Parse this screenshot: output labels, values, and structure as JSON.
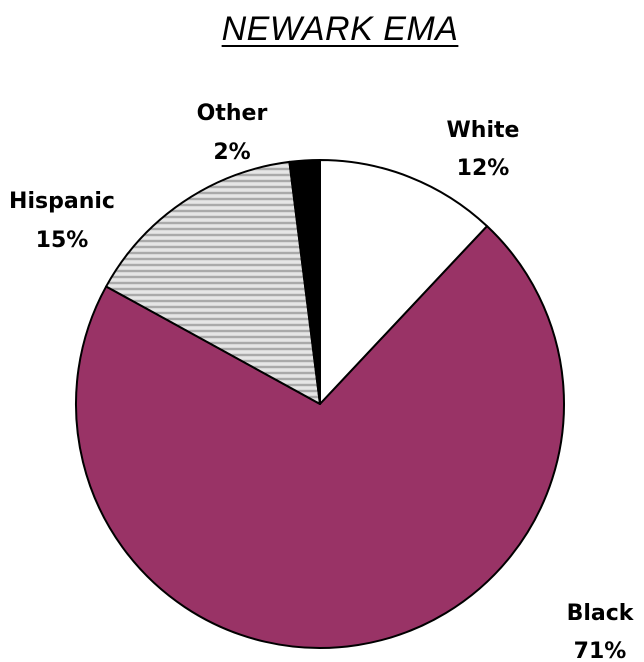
{
  "chart_data": {
    "type": "pie",
    "title": "NEWARK EMA",
    "slices": [
      {
        "label": "White",
        "value": 12,
        "value_label": "12%",
        "color": "#ffffff",
        "pattern": "none"
      },
      {
        "label": "Black",
        "value": 71,
        "value_label": "71%",
        "color": "#993366",
        "pattern": "none"
      },
      {
        "label": "Hispanic",
        "value": 15,
        "value_label": "15%",
        "color": "#c0c0c0",
        "pattern": "horizontal-stripes"
      },
      {
        "label": "Other",
        "value": 2,
        "value_label": "2%",
        "color": "#000000",
        "pattern": "none"
      }
    ],
    "start_angle_deg": 0,
    "direction": "clockwise",
    "legend": "none"
  }
}
